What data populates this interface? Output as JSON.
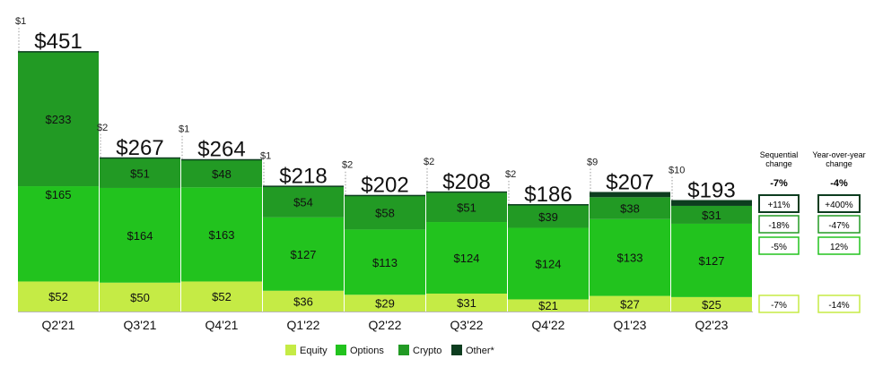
{
  "chart_data": {
    "type": "bar",
    "stacked": true,
    "categories": [
      "Q2'21",
      "Q3'21",
      "Q4'21",
      "Q1'22",
      "Q2'22",
      "Q3'22",
      "Q4'22",
      "Q1'23",
      "Q2'23"
    ],
    "series": [
      {
        "name": "Equity",
        "values": [
          52,
          50,
          52,
          36,
          29,
          31,
          21,
          27,
          25
        ]
      },
      {
        "name": "Options",
        "values": [
          165,
          164,
          163,
          127,
          113,
          124,
          124,
          133,
          127
        ]
      },
      {
        "name": "Crypto",
        "values": [
          233,
          51,
          48,
          54,
          58,
          51,
          39,
          38,
          31
        ]
      },
      {
        "name": "Other*",
        "values": [
          1,
          2,
          1,
          1,
          2,
          2,
          2,
          9,
          10
        ]
      }
    ],
    "totals": [
      "$451",
      "$267",
      "$264",
      "$218",
      "$202",
      "$208",
      "$186",
      "$207",
      "$193"
    ],
    "segment_labels": {
      "Equity": [
        "$52",
        "$50",
        "$52",
        "$36",
        "$29",
        "$31",
        "$21",
        "$27",
        "$25"
      ],
      "Options": [
        "$165",
        "$164",
        "$163",
        "$127",
        "$113",
        "$124",
        "$124",
        "$133",
        "$127"
      ],
      "Crypto": [
        "$233",
        "$51",
        "$48",
        "$54",
        "$58",
        "$51",
        "$39",
        "$38",
        "$31"
      ],
      "Other*": [
        "$1",
        "$2",
        "$1",
        "$1",
        "$2",
        "$2",
        "$2",
        "$9",
        "$10"
      ]
    },
    "colors": {
      "Equity": "#c5eb45",
      "Options": "#22c31e",
      "Crypto": "#229a24",
      "Other*": "#0d3d1f"
    },
    "change_table": {
      "sequential_header": [
        "Sequential",
        "change"
      ],
      "yoy_header": [
        "Year-over-year",
        "change"
      ],
      "sequential_total": "-7%",
      "yoy_total": "-4%",
      "sequential_rows": [
        "+11%",
        "-18%",
        "-5%",
        "-7%"
      ],
      "yoy_rows": [
        "+400%",
        "-47%",
        "12%",
        "-14%"
      ],
      "row_series": [
        "Other*",
        "Crypto",
        "Options",
        "Equity"
      ]
    },
    "legend": [
      "Equity",
      "Options",
      "Crypto",
      "Other*"
    ],
    "legend_position": "bottom",
    "ylim": [
      0,
      460
    ]
  }
}
